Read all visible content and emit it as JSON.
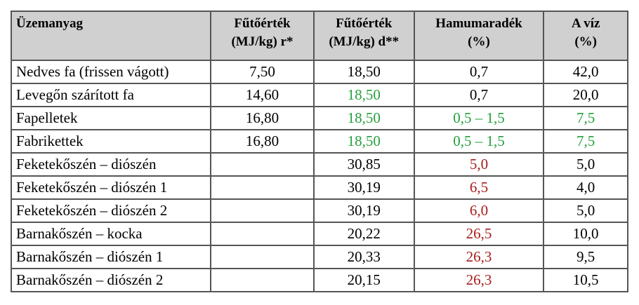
{
  "table": {
    "header": [
      "Üzemanyag",
      "Fűtőérték\n(MJ/kg) r*",
      "Fűtőérték\n(MJ/kg) d**",
      "Hamumaradék\n(%)",
      "A víz\n(%)"
    ],
    "rows": [
      [
        "Nedves fa (frissen vágott)",
        "7,50",
        "18,50",
        "0,7",
        "42,0"
      ],
      [
        "Levegőn szárított fa",
        "14,60",
        {
          "text": "18,50",
          "color": "#23a03c"
        },
        "0,7",
        "20,0"
      ],
      [
        "Fapelletek",
        "16,80",
        {
          "text": "18,50",
          "color": "#23a03c"
        },
        {
          "text": "0,5 – 1,5",
          "color": "#23a03c"
        },
        {
          "text": "7,5",
          "color": "#23a03c"
        }
      ],
      [
        "Fabrikettek",
        "16,80",
        {
          "text": "18,50",
          "color": "#23a03c"
        },
        {
          "text": "0,5 – 1,5",
          "color": "#23a03c"
        },
        {
          "text": "7,5",
          "color": "#23a03c"
        }
      ],
      [
        "Feketekőszén – diószén",
        null,
        "30,85",
        {
          "text": "5,0",
          "color": "#a81c1c"
        },
        "5,0"
      ],
      [
        "Feketekőszén – diószén 1",
        null,
        "30,19",
        {
          "text": "6,5",
          "color": "#a81c1c"
        },
        "4,0"
      ],
      [
        "Feketekőszén – diószén 2",
        null,
        "30,19",
        {
          "text": "6,0",
          "color": "#a81c1c"
        },
        "5,0"
      ],
      [
        "Barnakőszén – kocka",
        null,
        "20,22",
        {
          "text": "26,5",
          "color": "#a81c1c"
        },
        "10,0"
      ],
      [
        "Barnakőszén – diószén 1",
        null,
        "20,33",
        {
          "text": "26,3",
          "color": "#a81c1c"
        },
        "9,5"
      ],
      [
        "Barnakőszén – diószén 2",
        null,
        "20,15",
        {
          "text": "26,3",
          "color": "#a81c1c"
        },
        "10,5"
      ]
    ]
  }
}
